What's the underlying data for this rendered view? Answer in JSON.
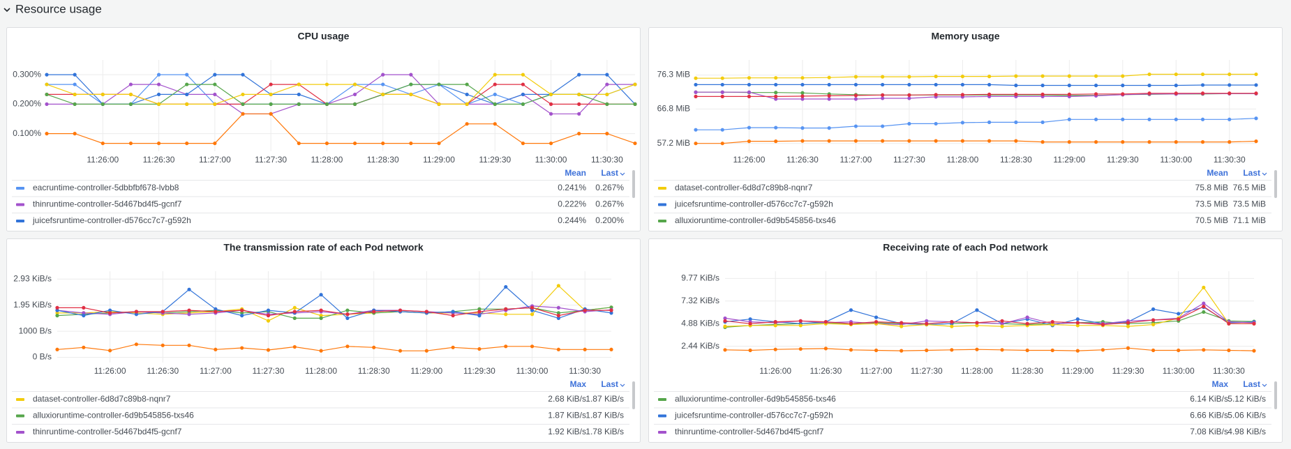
{
  "section_title": "Resource usage",
  "chart_data": [
    {
      "type": "line",
      "title": "CPU usage",
      "x": [
        "11:25:30",
        "11:25:45",
        "11:26:00",
        "11:26:15",
        "11:26:30",
        "11:26:45",
        "11:27:00",
        "11:27:15",
        "11:27:30",
        "11:27:45",
        "11:28:00",
        "11:28:15",
        "11:28:30",
        "11:28:45",
        "11:29:00",
        "11:29:15",
        "11:29:30",
        "11:29:45",
        "11:30:00",
        "11:30:15",
        "11:30:30",
        "11:30:45"
      ],
      "xlim": [
        "11:25:30",
        "11:30:45"
      ],
      "xticks": [
        "11:26:00",
        "11:26:30",
        "11:27:00",
        "11:27:30",
        "11:28:00",
        "11:28:30",
        "11:29:00",
        "11:29:30",
        "11:30:00",
        "11:30:30"
      ],
      "ylim": [
        0.04,
        0.35
      ],
      "yticks": [
        {
          "value": 0.1,
          "label": "0.100%"
        },
        {
          "value": 0.2,
          "label": "0.200%"
        },
        {
          "value": 0.3,
          "label": "0.300%"
        }
      ],
      "legend_columns": [
        "Mean",
        "Last"
      ],
      "series": [
        {
          "name": "eacruntime-controller-5dbbfbf678-lvbb8",
          "color": "#5794f2",
          "legend": [
            "0.241%",
            "0.267%"
          ],
          "values": [
            0.267,
            0.267,
            0.2,
            0.2,
            0.3,
            0.3,
            0.2,
            0.2,
            0.2,
            0.2,
            0.2,
            0.267,
            0.267,
            0.233,
            0.267,
            0.2,
            0.233,
            0.2,
            0.233,
            0.233,
            0.233,
            0.267
          ]
        },
        {
          "name": "thinruntime-controller-5d467bd4f5-gcnf7",
          "color": "#a352cc",
          "legend": [
            "0.222%",
            "0.267%"
          ],
          "values": [
            0.2,
            0.2,
            0.2,
            0.267,
            0.267,
            0.233,
            0.233,
            0.167,
            0.167,
            0.2,
            0.2,
            0.233,
            0.3,
            0.3,
            0.2,
            0.2,
            0.2,
            0.233,
            0.167,
            0.167,
            0.267,
            0.267
          ]
        },
        {
          "name": "juicefsruntime-controller-d576cc7c7-g592h",
          "color": "#3274d9",
          "legend": [
            "0.244%",
            "0.200%"
          ],
          "values": [
            0.3,
            0.3,
            0.2,
            0.2,
            0.233,
            0.233,
            0.3,
            0.3,
            0.233,
            0.233,
            0.2,
            0.2,
            0.233,
            0.267,
            0.267,
            0.233,
            0.2,
            0.233,
            0.233,
            0.3,
            0.3,
            0.2
          ]
        },
        {
          "color": "#ff780a",
          "values": [
            0.1,
            0.1,
            0.067,
            0.067,
            0.067,
            0.067,
            0.067,
            0.167,
            0.167,
            0.067,
            0.067,
            0.067,
            0.067,
            0.067,
            0.067,
            0.133,
            0.133,
            0.067,
            0.067,
            0.1,
            0.1,
            0.067
          ]
        },
        {
          "color": "#e02f44",
          "values": [
            0.233,
            0.233,
            0.233,
            0.233,
            0.2,
            0.2,
            0.2,
            0.2,
            0.267,
            0.267,
            0.2,
            0.2,
            0.233,
            0.233,
            0.2,
            0.2,
            0.267,
            0.267,
            0.2,
            0.2,
            0.2,
            0.2
          ]
        },
        {
          "color": "#56a64b",
          "values": [
            0.233,
            0.2,
            0.2,
            0.2,
            0.2,
            0.267,
            0.267,
            0.2,
            0.2,
            0.2,
            0.2,
            0.2,
            0.233,
            0.267,
            0.267,
            0.267,
            0.2,
            0.2,
            0.233,
            0.233,
            0.2,
            0.2
          ]
        },
        {
          "color": "#f2cc0c",
          "values": [
            0.267,
            0.233,
            0.233,
            0.233,
            0.2,
            0.2,
            0.2,
            0.233,
            0.233,
            0.267,
            0.267,
            0.267,
            0.233,
            0.233,
            0.2,
            0.2,
            0.3,
            0.3,
            0.233,
            0.233,
            0.233,
            0.267
          ]
        }
      ]
    },
    {
      "type": "line",
      "title": "Memory usage",
      "x": [
        "11:25:30",
        "11:25:45",
        "11:26:00",
        "11:26:15",
        "11:26:30",
        "11:26:45",
        "11:27:00",
        "11:27:15",
        "11:27:30",
        "11:27:45",
        "11:28:00",
        "11:28:15",
        "11:28:30",
        "11:28:45",
        "11:29:00",
        "11:29:15",
        "11:29:30",
        "11:29:45",
        "11:30:00",
        "11:30:15",
        "11:30:30",
        "11:30:45"
      ],
      "xlim": [
        "11:25:30",
        "11:30:45"
      ],
      "xticks": [
        "11:26:00",
        "11:26:30",
        "11:27:00",
        "11:27:30",
        "11:28:00",
        "11:28:30",
        "11:29:00",
        "11:29:30",
        "11:30:00",
        "11:30:30"
      ],
      "ylim": [
        55,
        80.5
      ],
      "yticks": [
        {
          "value": 57.2,
          "label": "57.2 MiB"
        },
        {
          "value": 66.8,
          "label": "66.8 MiB"
        },
        {
          "value": 76.3,
          "label": "76.3 MiB"
        }
      ],
      "legend_columns": [
        "Mean",
        "Last"
      ],
      "series": [
        {
          "name": "dataset-controller-6d8d7c89b8-nqnr7",
          "color": "#f2cc0c",
          "legend": [
            "75.8 MiB",
            "76.5 MiB"
          ],
          "values": [
            75.4,
            75.4,
            75.5,
            75.5,
            75.5,
            75.6,
            75.8,
            75.8,
            75.8,
            75.9,
            75.9,
            75.9,
            76.0,
            76.0,
            76.0,
            76.0,
            76.0,
            76.5,
            76.5,
            76.5,
            76.5,
            76.5
          ]
        },
        {
          "name": "juicefsruntime-controller-d576cc7c7-g592h",
          "color": "#3274d9",
          "legend": [
            "73.5 MiB",
            "73.5 MiB"
          ],
          "values": [
            73.6,
            73.6,
            73.6,
            73.6,
            73.6,
            73.6,
            73.6,
            73.6,
            73.6,
            73.6,
            73.6,
            73.6,
            73.4,
            73.4,
            73.4,
            73.4,
            73.4,
            73.4,
            73.4,
            73.5,
            73.5,
            73.5
          ]
        },
        {
          "name": "alluxioruntime-controller-6d9b545856-txs46",
          "color": "#56a64b",
          "legend": [
            "70.5 MiB",
            "71.1 MiB"
          ],
          "values": [
            71.5,
            71.5,
            71.4,
            71.4,
            71.3,
            71.0,
            70.8,
            70.7,
            70.7,
            70.7,
            70.7,
            70.7,
            70.7,
            70.7,
            70.6,
            70.6,
            70.8,
            70.9,
            71.0,
            71.0,
            71.1,
            71.1
          ]
        },
        {
          "color": "#a352cc",
          "values": [
            71.5,
            71.5,
            71.5,
            69.6,
            69.6,
            69.6,
            69.6,
            69.8,
            69.8,
            70.2,
            70.2,
            70.3,
            70.3,
            70.3,
            70.3,
            70.5,
            70.8,
            71.0,
            71.0,
            71.1,
            71.1,
            71.1
          ]
        },
        {
          "color": "#e02f44",
          "values": [
            70.3,
            70.3,
            70.3,
            70.3,
            70.4,
            70.5,
            70.6,
            70.7,
            70.7,
            70.8,
            70.8,
            70.9,
            70.9,
            70.9,
            70.9,
            71.0,
            71.0,
            71.2,
            71.2,
            71.2,
            71.2,
            71.2
          ]
        },
        {
          "color": "#5794f2",
          "values": [
            61.0,
            61.0,
            61.6,
            61.6,
            61.5,
            61.5,
            62.0,
            62.0,
            62.7,
            62.7,
            63.0,
            63.1,
            63.1,
            63.1,
            63.9,
            63.9,
            63.9,
            63.9,
            63.9,
            63.9,
            63.9,
            64.2
          ]
        },
        {
          "color": "#ff780a",
          "values": [
            57.2,
            57.2,
            57.8,
            57.8,
            57.9,
            57.9,
            57.9,
            57.9,
            57.9,
            57.9,
            57.9,
            57.9,
            57.9,
            57.6,
            57.6,
            57.6,
            57.6,
            57.6,
            57.6,
            57.6,
            57.6,
            57.8
          ]
        }
      ]
    },
    {
      "type": "line",
      "title": "The transmission rate of each Pod network",
      "x": [
        "11:25:30",
        "11:25:45",
        "11:26:00",
        "11:26:15",
        "11:26:30",
        "11:26:45",
        "11:27:00",
        "11:27:15",
        "11:27:30",
        "11:27:45",
        "11:28:00",
        "11:28:15",
        "11:28:30",
        "11:28:45",
        "11:29:00",
        "11:29:15",
        "11:29:30",
        "11:29:45",
        "11:30:00",
        "11:30:15",
        "11:30:30",
        "11:30:45"
      ],
      "xlim": [
        "11:25:30",
        "11:30:45"
      ],
      "xticks": [
        "11:26:00",
        "11:26:30",
        "11:27:00",
        "11:27:30",
        "11:28:00",
        "11:28:30",
        "11:29:00",
        "11:29:30",
        "11:30:00",
        "11:30:30"
      ],
      "ylim": [
        -200,
        3300
      ],
      "yticks": [
        {
          "value": 0,
          "label": "0 B/s"
        },
        {
          "value": 1000,
          "label": "1000 B/s"
        },
        {
          "value": 2000,
          "label": "1.95 KiB/s"
        },
        {
          "value": 3000,
          "label": "2.93 KiB/s"
        }
      ],
      "legend_columns": [
        "Max",
        "Last"
      ],
      "series": [
        {
          "name": "dataset-controller-6d8d7c89b8-nqnr7",
          "color": "#f2cc0c",
          "legend": [
            "2.68 KiB/s",
            "1.87 KiB/s"
          ],
          "values": [
            1700,
            1700,
            1750,
            1700,
            1650,
            1700,
            1750,
            1850,
            1400,
            1900,
            1600,
            1650,
            1700,
            1750,
            1700,
            1700,
            1700,
            1650,
            1650,
            2744,
            1800,
            1915
          ]
        },
        {
          "name": "alluxioruntime-controller-6d9b545856-txs46",
          "color": "#56a64b",
          "legend": [
            "1.87 KiB/s",
            "1.87 KiB/s"
          ],
          "values": [
            1600,
            1650,
            1700,
            1750,
            1700,
            1750,
            1800,
            1700,
            1750,
            1500,
            1500,
            1800,
            1700,
            1750,
            1700,
            1750,
            1850,
            1850,
            1900,
            1700,
            1800,
            1915
          ]
        },
        {
          "name": "thinruntime-controller-5d467bd4f5-gcnf7",
          "color": "#a352cc",
          "legend": [
            "1.92 KiB/s",
            "1.78 KiB/s"
          ],
          "values": [
            1800,
            1700,
            1650,
            1750,
            1700,
            1650,
            1700,
            1800,
            1650,
            1700,
            1750,
            1650,
            1800,
            1800,
            1750,
            1700,
            1650,
            1800,
            1966,
            1900,
            1750,
            1823
          ]
        },
        {
          "color": "#3274d9",
          "values": [
            1800,
            1600,
            1800,
            1650,
            1750,
            2600,
            1850,
            1600,
            1800,
            1700,
            2400,
            1500,
            1800,
            1750,
            1700,
            1750,
            1600,
            2700,
            1800,
            1500,
            1850,
            1700
          ]
        },
        {
          "color": "#e02f44",
          "values": [
            1900,
            1900,
            1700,
            1750,
            1750,
            1800,
            1750,
            1800,
            1600,
            1750,
            1800,
            1650,
            1750,
            1800,
            1750,
            1600,
            1750,
            1850,
            1900,
            1600,
            1800,
            1800
          ]
        },
        {
          "color": "#ff780a",
          "values": [
            300,
            380,
            260,
            500,
            460,
            460,
            300,
            360,
            280,
            400,
            250,
            420,
            380,
            250,
            250,
            380,
            320,
            420,
            420,
            300,
            300,
            300
          ]
        }
      ]
    },
    {
      "type": "line",
      "title": "Receiving rate of each Pod network",
      "x": [
        "11:25:30",
        "11:25:45",
        "11:26:00",
        "11:26:15",
        "11:26:30",
        "11:26:45",
        "11:27:00",
        "11:27:15",
        "11:27:30",
        "11:27:45",
        "11:28:00",
        "11:28:15",
        "11:28:30",
        "11:28:45",
        "11:29:00",
        "11:29:15",
        "11:29:30",
        "11:29:45",
        "11:30:00",
        "11:30:15",
        "11:30:30",
        "11:30:45"
      ],
      "xlim": [
        "11:25:30",
        "11:30:45"
      ],
      "xticks": [
        "11:26:00",
        "11:26:30",
        "11:27:00",
        "11:27:30",
        "11:28:00",
        "11:28:30",
        "11:29:00",
        "11:29:30",
        "11:30:00",
        "11:30:30"
      ],
      "ylim": [
        700,
        10800
      ],
      "yticks": [
        {
          "value": 2500,
          "label": "2.44 KiB/s"
        },
        {
          "value": 5000,
          "label": "4.88 KiB/s"
        },
        {
          "value": 7500,
          "label": "7.32 KiB/s"
        },
        {
          "value": 10000,
          "label": "9.77 KiB/s"
        }
      ],
      "legend_columns": [
        "Max",
        "Last"
      ],
      "series": [
        {
          "name": "alluxioruntime-controller-6d9b545856-txs46",
          "color": "#56a64b",
          "legend": [
            "6.14 KiB/s",
            "5.12 KiB/s"
          ],
          "values": [
            4600,
            4800,
            4900,
            5000,
            5100,
            5000,
            5100,
            5000,
            4900,
            5000,
            5100,
            5000,
            4900,
            5000,
            5100,
            5200,
            5000,
            5100,
            5300,
            6287,
            5300,
            5243
          ]
        },
        {
          "name": "juicefsruntime-controller-d576cc7c7-g592h",
          "color": "#3274d9",
          "legend": [
            "6.66 KiB/s",
            "5.06 KiB/s"
          ],
          "values": [
            5200,
            5500,
            5200,
            5000,
            5200,
            6500,
            5700,
            5000,
            4900,
            5000,
            6500,
            5000,
            5500,
            4800,
            5500,
            5000,
            5200,
            6600,
            6100,
            6820,
            5100,
            5181
          ]
        },
        {
          "name": "thinruntime-controller-5d467bd4f5-gcnf7",
          "color": "#a352cc",
          "legend": [
            "7.08 KiB/s",
            "4.98 KiB/s"
          ],
          "values": [
            5600,
            5200,
            5100,
            5300,
            5100,
            5200,
            5000,
            4900,
            5300,
            5200,
            5100,
            5000,
            5700,
            5000,
            5100,
            5000,
            5300,
            5400,
            5600,
            7250,
            5200,
            5100
          ]
        },
        {
          "color": "#f2cc0c",
          "values": [
            4700,
            4800,
            4800,
            4800,
            5000,
            4900,
            5000,
            4700,
            4900,
            4700,
            4800,
            4700,
            4800,
            4900,
            4800,
            4800,
            4700,
            4900,
            5600,
            9000,
            5000,
            5000
          ]
        },
        {
          "color": "#e02f44",
          "values": [
            5300,
            5000,
            5200,
            5300,
            5200,
            5000,
            5200,
            5100,
            5000,
            5200,
            5100,
            5300,
            5000,
            5200,
            5100,
            4900,
            5100,
            5400,
            5500,
            6900,
            5000,
            5000
          ]
        },
        {
          "color": "#ff780a",
          "values": [
            2100,
            2050,
            2150,
            2200,
            2250,
            2100,
            2050,
            2000,
            2050,
            2100,
            2150,
            2100,
            2050,
            2050,
            2000,
            2100,
            2300,
            2050,
            2050,
            2100,
            2050,
            2000
          ]
        }
      ]
    }
  ]
}
